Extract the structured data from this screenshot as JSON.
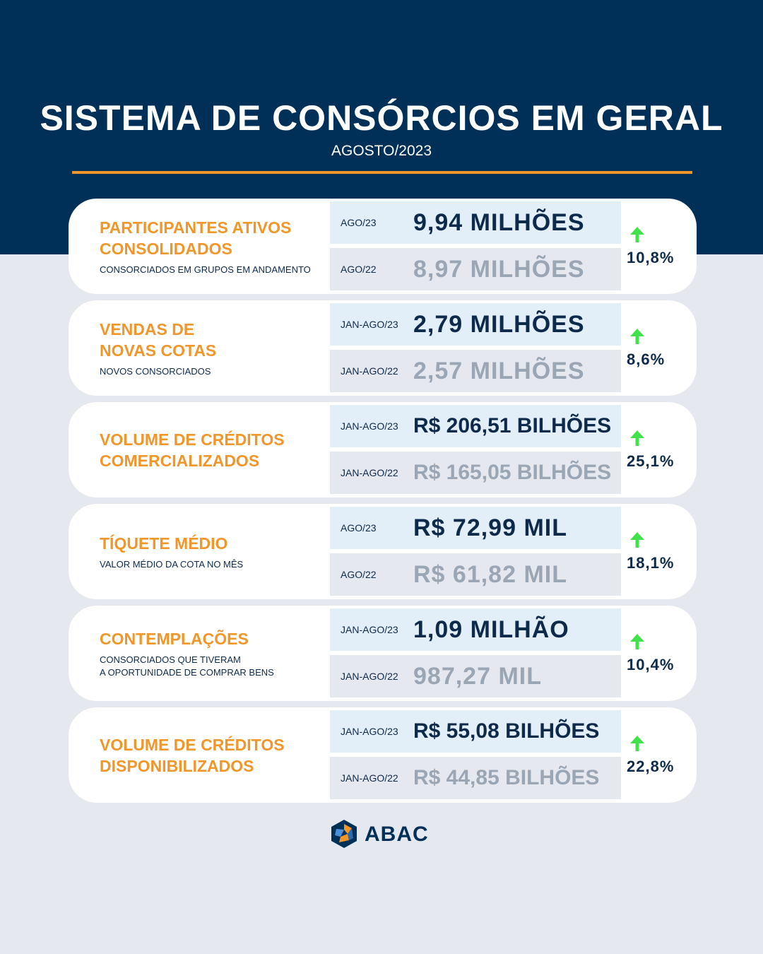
{
  "header": {
    "title": "SISTEMA DE CONSÓRCIOS EM GERAL",
    "subtitle": "AGOSTO/2023"
  },
  "cards": [
    {
      "title": "PARTICIPANTES ATIVOS\nCONSOLIDADOS",
      "desc": "CONSORCIADOS EM GRUPOS EM ANDAMENTO",
      "current": {
        "period": "AGO/23",
        "value": "9,94 MILHÕES"
      },
      "previous": {
        "period": "AGO/22",
        "value": "8,97 MILHÕES"
      },
      "change": "10,8%"
    },
    {
      "title": "VENDAS DE\nNOVAS COTAS",
      "desc": "NOVOS CONSORCIADOS",
      "current": {
        "period": "JAN-AGO/23",
        "value": "2,79 MILHÕES"
      },
      "previous": {
        "period": "JAN-AGO/22",
        "value": "2,57 MILHÕES"
      },
      "change": "8,6%"
    },
    {
      "title": "VOLUME DE CRÉDITOS\nCOMERCIALIZADOS",
      "desc": "",
      "current": {
        "period": "JAN-AGO/23",
        "value": "R$ 206,51 BILHÕES"
      },
      "previous": {
        "period": "JAN-AGO/22",
        "value": "R$ 165,05 BILHÕES"
      },
      "change": "25,1%"
    },
    {
      "title": "TÍQUETE MÉDIO",
      "desc": "VALOR MÉDIO DA COTA NO MÊS",
      "current": {
        "period": "AGO/23",
        "value": "R$ 72,99 MIL"
      },
      "previous": {
        "period": "AGO/22",
        "value": "R$ 61,82 MIL"
      },
      "change": "18,1%"
    },
    {
      "title": "CONTEMPLAÇÕES",
      "desc": "CONSORCIADOS QUE TIVERAM\nA OPORTUNIDADE DE COMPRAR BENS",
      "current": {
        "period": "JAN-AGO/23",
        "value": "1,09 MILHÃO"
      },
      "previous": {
        "period": "JAN-AGO/22",
        "value": "987,27 MIL"
      },
      "change": "10,4%"
    },
    {
      "title": "VOLUME DE CRÉDITOS\nDISPONIBILIZADOS",
      "desc": "",
      "current": {
        "period": "JAN-AGO/23",
        "value": "R$ 55,08 BILHÕES"
      },
      "previous": {
        "period": "JAN-AGO/22",
        "value": "R$ 44,85 BILHÕES"
      },
      "change": "22,8%"
    }
  ],
  "trend_icon": "arrow-up-icon",
  "colors": {
    "navy": "#003057",
    "orange": "#f0962a",
    "arrow_green": "#44e24a",
    "muted_value": "#9aa6b4"
  },
  "logo": {
    "text": "ABAC"
  }
}
